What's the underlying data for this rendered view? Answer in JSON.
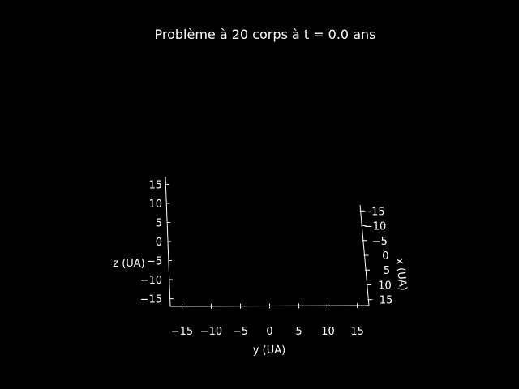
{
  "colors": {
    "background": "#000000",
    "foreground": "#ffffff"
  },
  "chart_data": {
    "type": "scatter",
    "projection": "3d",
    "title": "Problème à 20 corps à t = 0.0 ans",
    "xlabel": "x (UA)",
    "ylabel": "y (UA)",
    "zlabel": "z (UA)",
    "xlim": [
      -17,
      17
    ],
    "ylim": [
      -17,
      17
    ],
    "zlim": [
      -17,
      17
    ],
    "xticks": [
      -15,
      -10,
      -5,
      0,
      5,
      10,
      15
    ],
    "xtick_labels": [
      "−15",
      "−10",
      "−5",
      "0",
      "5",
      "10",
      "15"
    ],
    "yticks": [
      -15,
      -10,
      -5,
      0,
      5,
      10,
      15
    ],
    "ytick_labels": [
      "−15",
      "−10",
      "−5",
      "0",
      "5",
      "10",
      "15"
    ],
    "zticks": [
      -15,
      -10,
      -5,
      0,
      5,
      10,
      15
    ],
    "ztick_labels": [
      "−15",
      "−10",
      "−5",
      "0",
      "5",
      "10",
      "15"
    ],
    "grid": false,
    "series": []
  }
}
